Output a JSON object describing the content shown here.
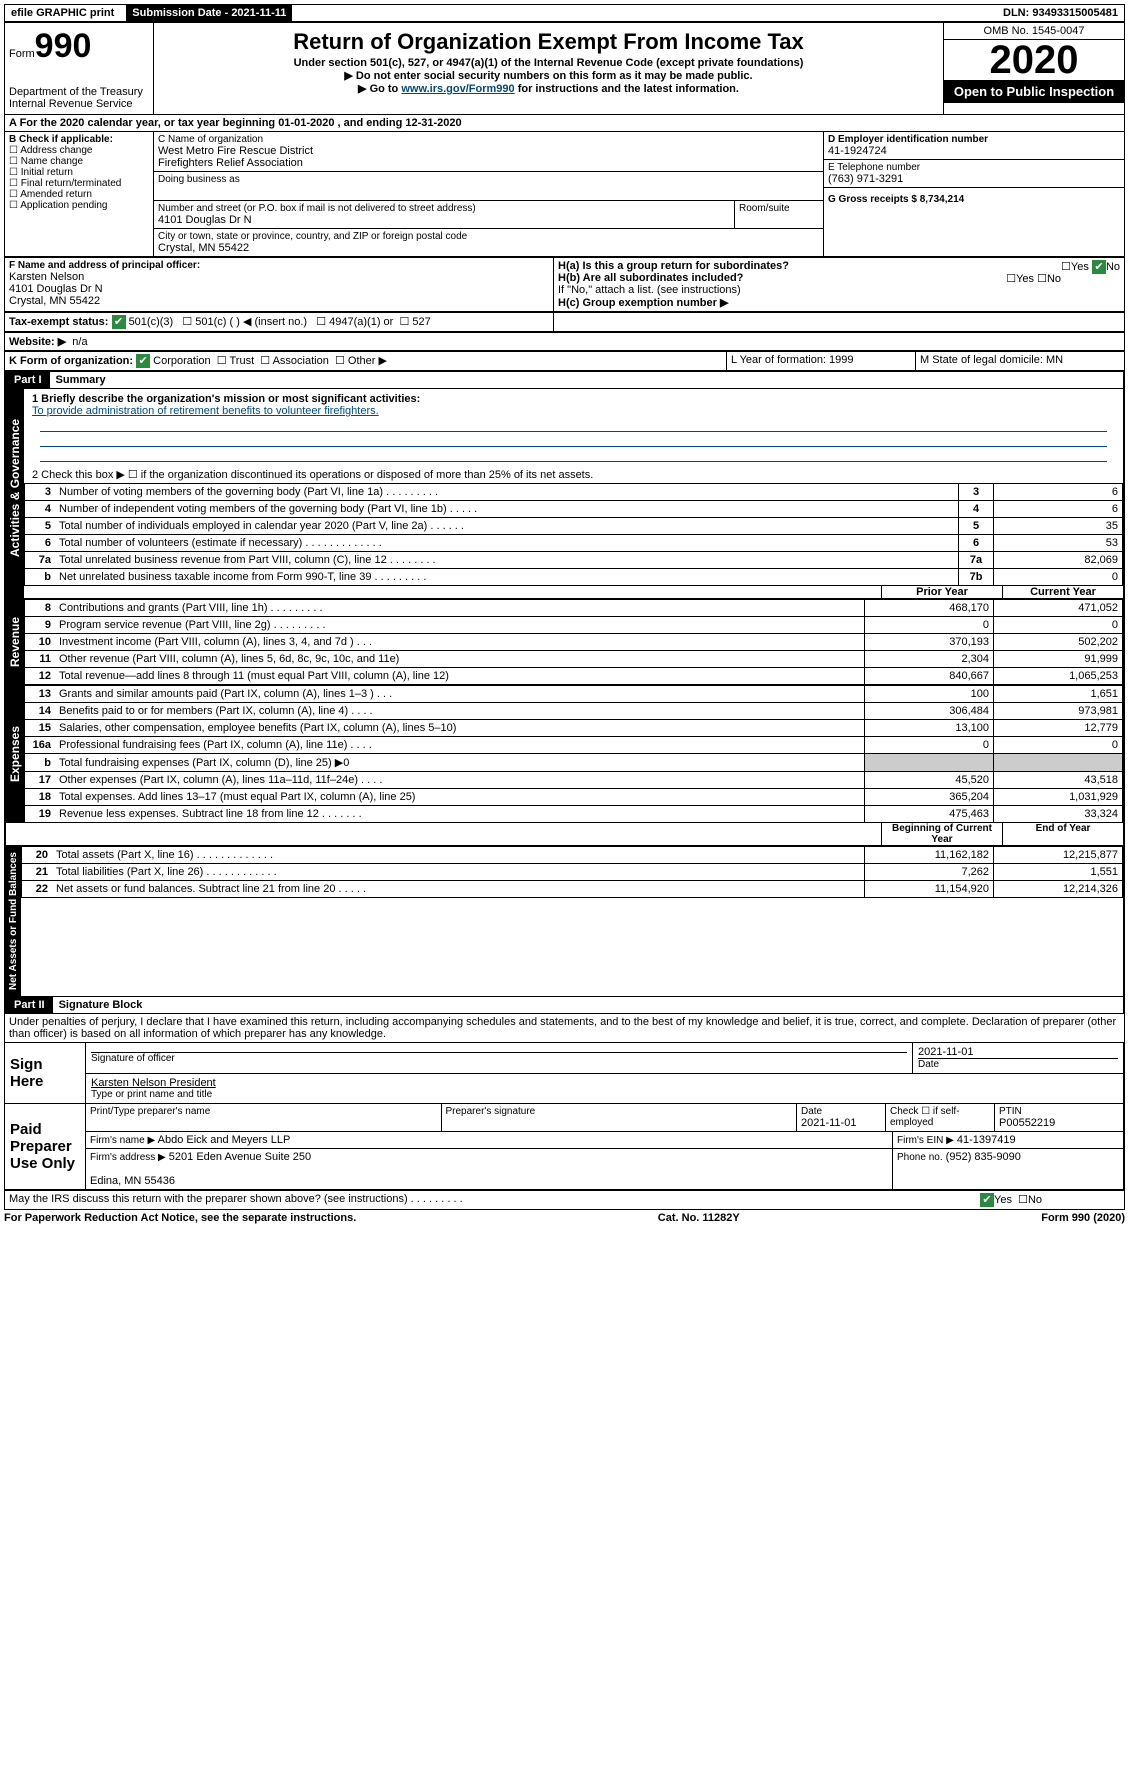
{
  "topbar": {
    "efile": "efile GRAPHIC print",
    "submission_label": "Submission Date - 2021-11-11",
    "dln_label": "DLN: 93493315005481"
  },
  "header": {
    "form_prefix": "Form",
    "form_number": "990",
    "title": "Return of Organization Exempt From Income Tax",
    "sub1": "Under section 501(c), 527, or 4947(a)(1) of the Internal Revenue Code (except private foundations)",
    "sub2": "▶ Do not enter social security numbers on this form as it may be made public.",
    "sub3_pre": "▶ Go to ",
    "sub3_link": "www.irs.gov/Form990",
    "sub3_post": " for instructions and the latest information.",
    "dept": "Department of the Treasury\nInternal Revenue Service",
    "omb": "OMB No. 1545-0047",
    "year": "2020",
    "open": "Open to Public Inspection"
  },
  "A": {
    "text": "A For the 2020 calendar year, or tax year beginning 01-01-2020    , and ending 12-31-2020"
  },
  "B": {
    "label": "B Check if applicable:",
    "items": [
      "Address change",
      "Name change",
      "Initial return",
      "Final return/terminated",
      "Amended return",
      "Application pending"
    ]
  },
  "C": {
    "name_label": "C Name of organization",
    "name": "West Metro Fire Rescue District\nFirefighters Relief Association",
    "dba_label": "Doing business as",
    "addr_label": "Number and street (or P.O. box if mail is not delivered to street address)",
    "room_label": "Room/suite",
    "addr": "4101 Douglas Dr N",
    "city_label": "City or town, state or province, country, and ZIP or foreign postal code",
    "city": "Crystal, MN  55422"
  },
  "D": {
    "label": "D Employer identification number",
    "value": "41-1924724"
  },
  "E": {
    "label": "E Telephone number",
    "value": "(763) 971-3291"
  },
  "G": {
    "label": "G Gross receipts $ 8,734,214"
  },
  "F": {
    "label": "F  Name and address of principal officer:",
    "name": "Karsten Nelson",
    "addr": "4101 Douglas Dr N\nCrystal, MN  55422"
  },
  "H": {
    "a": "H(a)  Is this a group return for subordinates?",
    "b": "H(b)  Are all subordinates included?",
    "note": "If \"No,\" attach a list. (see instructions)",
    "c": "H(c)  Group exemption number ▶",
    "yes": "Yes",
    "no": "No"
  },
  "I": {
    "label": "Tax-exempt status:",
    "v501c3": "501(c)(3)",
    "v501c": "501(c) (  )  ◀ (insert no.)",
    "v4947": "4947(a)(1) or",
    "v527": "527"
  },
  "J": {
    "label": "Website: ▶",
    "value": "n/a"
  },
  "K": {
    "label": "K Form of organization:",
    "corp": "Corporation",
    "trust": "Trust",
    "assoc": "Association",
    "other": "Other ▶"
  },
  "L": {
    "label": "L Year of formation: 1999"
  },
  "M": {
    "label": "M State of legal domicile: MN"
  },
  "part1": {
    "header": "Part I",
    "title": "Summary",
    "line1_label": "1  Briefly describe the organization's mission or most significant activities:",
    "mission": "To provide administration of retirement benefits to volunteer firefighters.",
    "line2": "2    Check this box ▶ ☐  if the organization discontinued its operations or disposed of more than 25% of its net assets.",
    "rows_simple": [
      {
        "n": "3",
        "d": "Number of voting members of the governing body (Part VI, line 1a)  . . . . . . . . .",
        "box": "3",
        "v": "6"
      },
      {
        "n": "4",
        "d": "Number of independent voting members of the governing body (Part VI, line 1b)  . . . . .",
        "box": "4",
        "v": "6"
      },
      {
        "n": "5",
        "d": "Total number of individuals employed in calendar year 2020 (Part V, line 2a)  . . . . . .",
        "box": "5",
        "v": "35"
      },
      {
        "n": "6",
        "d": "Total number of volunteers (estimate if necessary)  . . . . . . . . . . . . .",
        "box": "6",
        "v": "53"
      },
      {
        "n": "7a",
        "d": "Total unrelated business revenue from Part VIII, column (C), line 12  . . . . . . . .",
        "box": "7a",
        "v": "82,069"
      },
      {
        "n": "b",
        "d": "Net unrelated business taxable income from Form 990-T, line 39  . . . . . . . . .",
        "box": "7b",
        "v": "0"
      }
    ],
    "col_prior": "Prior Year",
    "col_current": "Current Year",
    "revenue": [
      {
        "n": "8",
        "d": "Contributions and grants (Part VIII, line 1h)  . . . . . . . . .",
        "p": "468,170",
        "c": "471,052"
      },
      {
        "n": "9",
        "d": "Program service revenue (Part VIII, line 2g)  . . . . . . . . .",
        "p": "0",
        "c": "0"
      },
      {
        "n": "10",
        "d": "Investment income (Part VIII, column (A), lines 3, 4, and 7d )  . . .",
        "p": "370,193",
        "c": "502,202"
      },
      {
        "n": "11",
        "d": "Other revenue (Part VIII, column (A), lines 5, 6d, 8c, 9c, 10c, and 11e)",
        "p": "2,304",
        "c": "91,999"
      },
      {
        "n": "12",
        "d": "Total revenue—add lines 8 through 11 (must equal Part VIII, column (A), line 12)",
        "p": "840,667",
        "c": "1,065,253"
      }
    ],
    "expenses": [
      {
        "n": "13",
        "d": "Grants and similar amounts paid (Part IX, column (A), lines 1–3 )  . . .",
        "p": "100",
        "c": "1,651"
      },
      {
        "n": "14",
        "d": "Benefits paid to or for members (Part IX, column (A), line 4)  . . . .",
        "p": "306,484",
        "c": "973,981"
      },
      {
        "n": "15",
        "d": "Salaries, other compensation, employee benefits (Part IX, column (A), lines 5–10)",
        "p": "13,100",
        "c": "12,779"
      },
      {
        "n": "16a",
        "d": "Professional fundraising fees (Part IX, column (A), line 11e)  . . . .",
        "p": "0",
        "c": "0"
      },
      {
        "n": "b",
        "d": "Total fundraising expenses (Part IX, column (D), line 25) ▶0",
        "p": "",
        "c": "",
        "shade": true
      },
      {
        "n": "17",
        "d": "Other expenses (Part IX, column (A), lines 11a–11d, 11f–24e)  . . . .",
        "p": "45,520",
        "c": "43,518"
      },
      {
        "n": "18",
        "d": "Total expenses. Add lines 13–17 (must equal Part IX, column (A), line 25)",
        "p": "365,204",
        "c": "1,031,929"
      },
      {
        "n": "19",
        "d": "Revenue less expenses. Subtract line 18 from line 12  . . . . . . .",
        "p": "475,463",
        "c": "33,324"
      }
    ],
    "col_begin": "Beginning of Current Year",
    "col_end": "End of Year",
    "netassets": [
      {
        "n": "20",
        "d": "Total assets (Part X, line 16)  . . . . . . . . . . . . .",
        "p": "11,162,182",
        "c": "12,215,877"
      },
      {
        "n": "21",
        "d": "Total liabilities (Part X, line 26)  . . . . . . . . . . . .",
        "p": "7,262",
        "c": "1,551"
      },
      {
        "n": "22",
        "d": "Net assets or fund balances. Subtract line 21 from line 20  . . . . .",
        "p": "11,154,920",
        "c": "12,214,326"
      }
    ]
  },
  "part2": {
    "header": "Part II",
    "title": "Signature Block",
    "perjury": "Under penalties of perjury, I declare that I have examined this return, including accompanying schedules and statements, and to the best of my knowledge and belief, it is true, correct, and complete. Declaration of preparer (other than officer) is based on all information of which preparer has any knowledge.",
    "sign_here": "Sign Here",
    "sig_officer": "Signature of officer",
    "sig_date": "2021-11-01",
    "date_label": "Date",
    "officer_name": "Karsten Nelson  President",
    "type_name": "Type or print name and title",
    "paid": "Paid Preparer Use Only",
    "prep_name_label": "Print/Type preparer's name",
    "prep_sig_label": "Preparer's signature",
    "prep_date": "2021-11-01",
    "self_emp": "Check ☐ if self-employed",
    "ptin_label": "PTIN",
    "ptin": "P00552219",
    "firm_name_label": "Firm's name      ▶",
    "firm_name": "Abdo Eick and Meyers LLP",
    "firm_ein_label": "Firm's EIN ▶",
    "firm_ein": "41-1397419",
    "firm_addr_label": "Firm's address ▶",
    "firm_addr": "5201 Eden Avenue Suite 250\n\nEdina, MN  55436",
    "phone_label": "Phone no.",
    "phone": "(952) 835-9090",
    "discuss": "May the IRS discuss this return with the preparer shown above? (see instructions)  .  .  .  .  .  .  .  .  .",
    "yes": "Yes",
    "no": "No"
  },
  "footer": {
    "left": "For Paperwork Reduction Act Notice, see the separate instructions.",
    "mid": "Cat. No. 11282Y",
    "right": "Form 990 (2020)"
  },
  "tabs": {
    "gov": "Activities & Governance",
    "rev": "Revenue",
    "exp": "Expenses",
    "net": "Net Assets or Fund Balances"
  }
}
